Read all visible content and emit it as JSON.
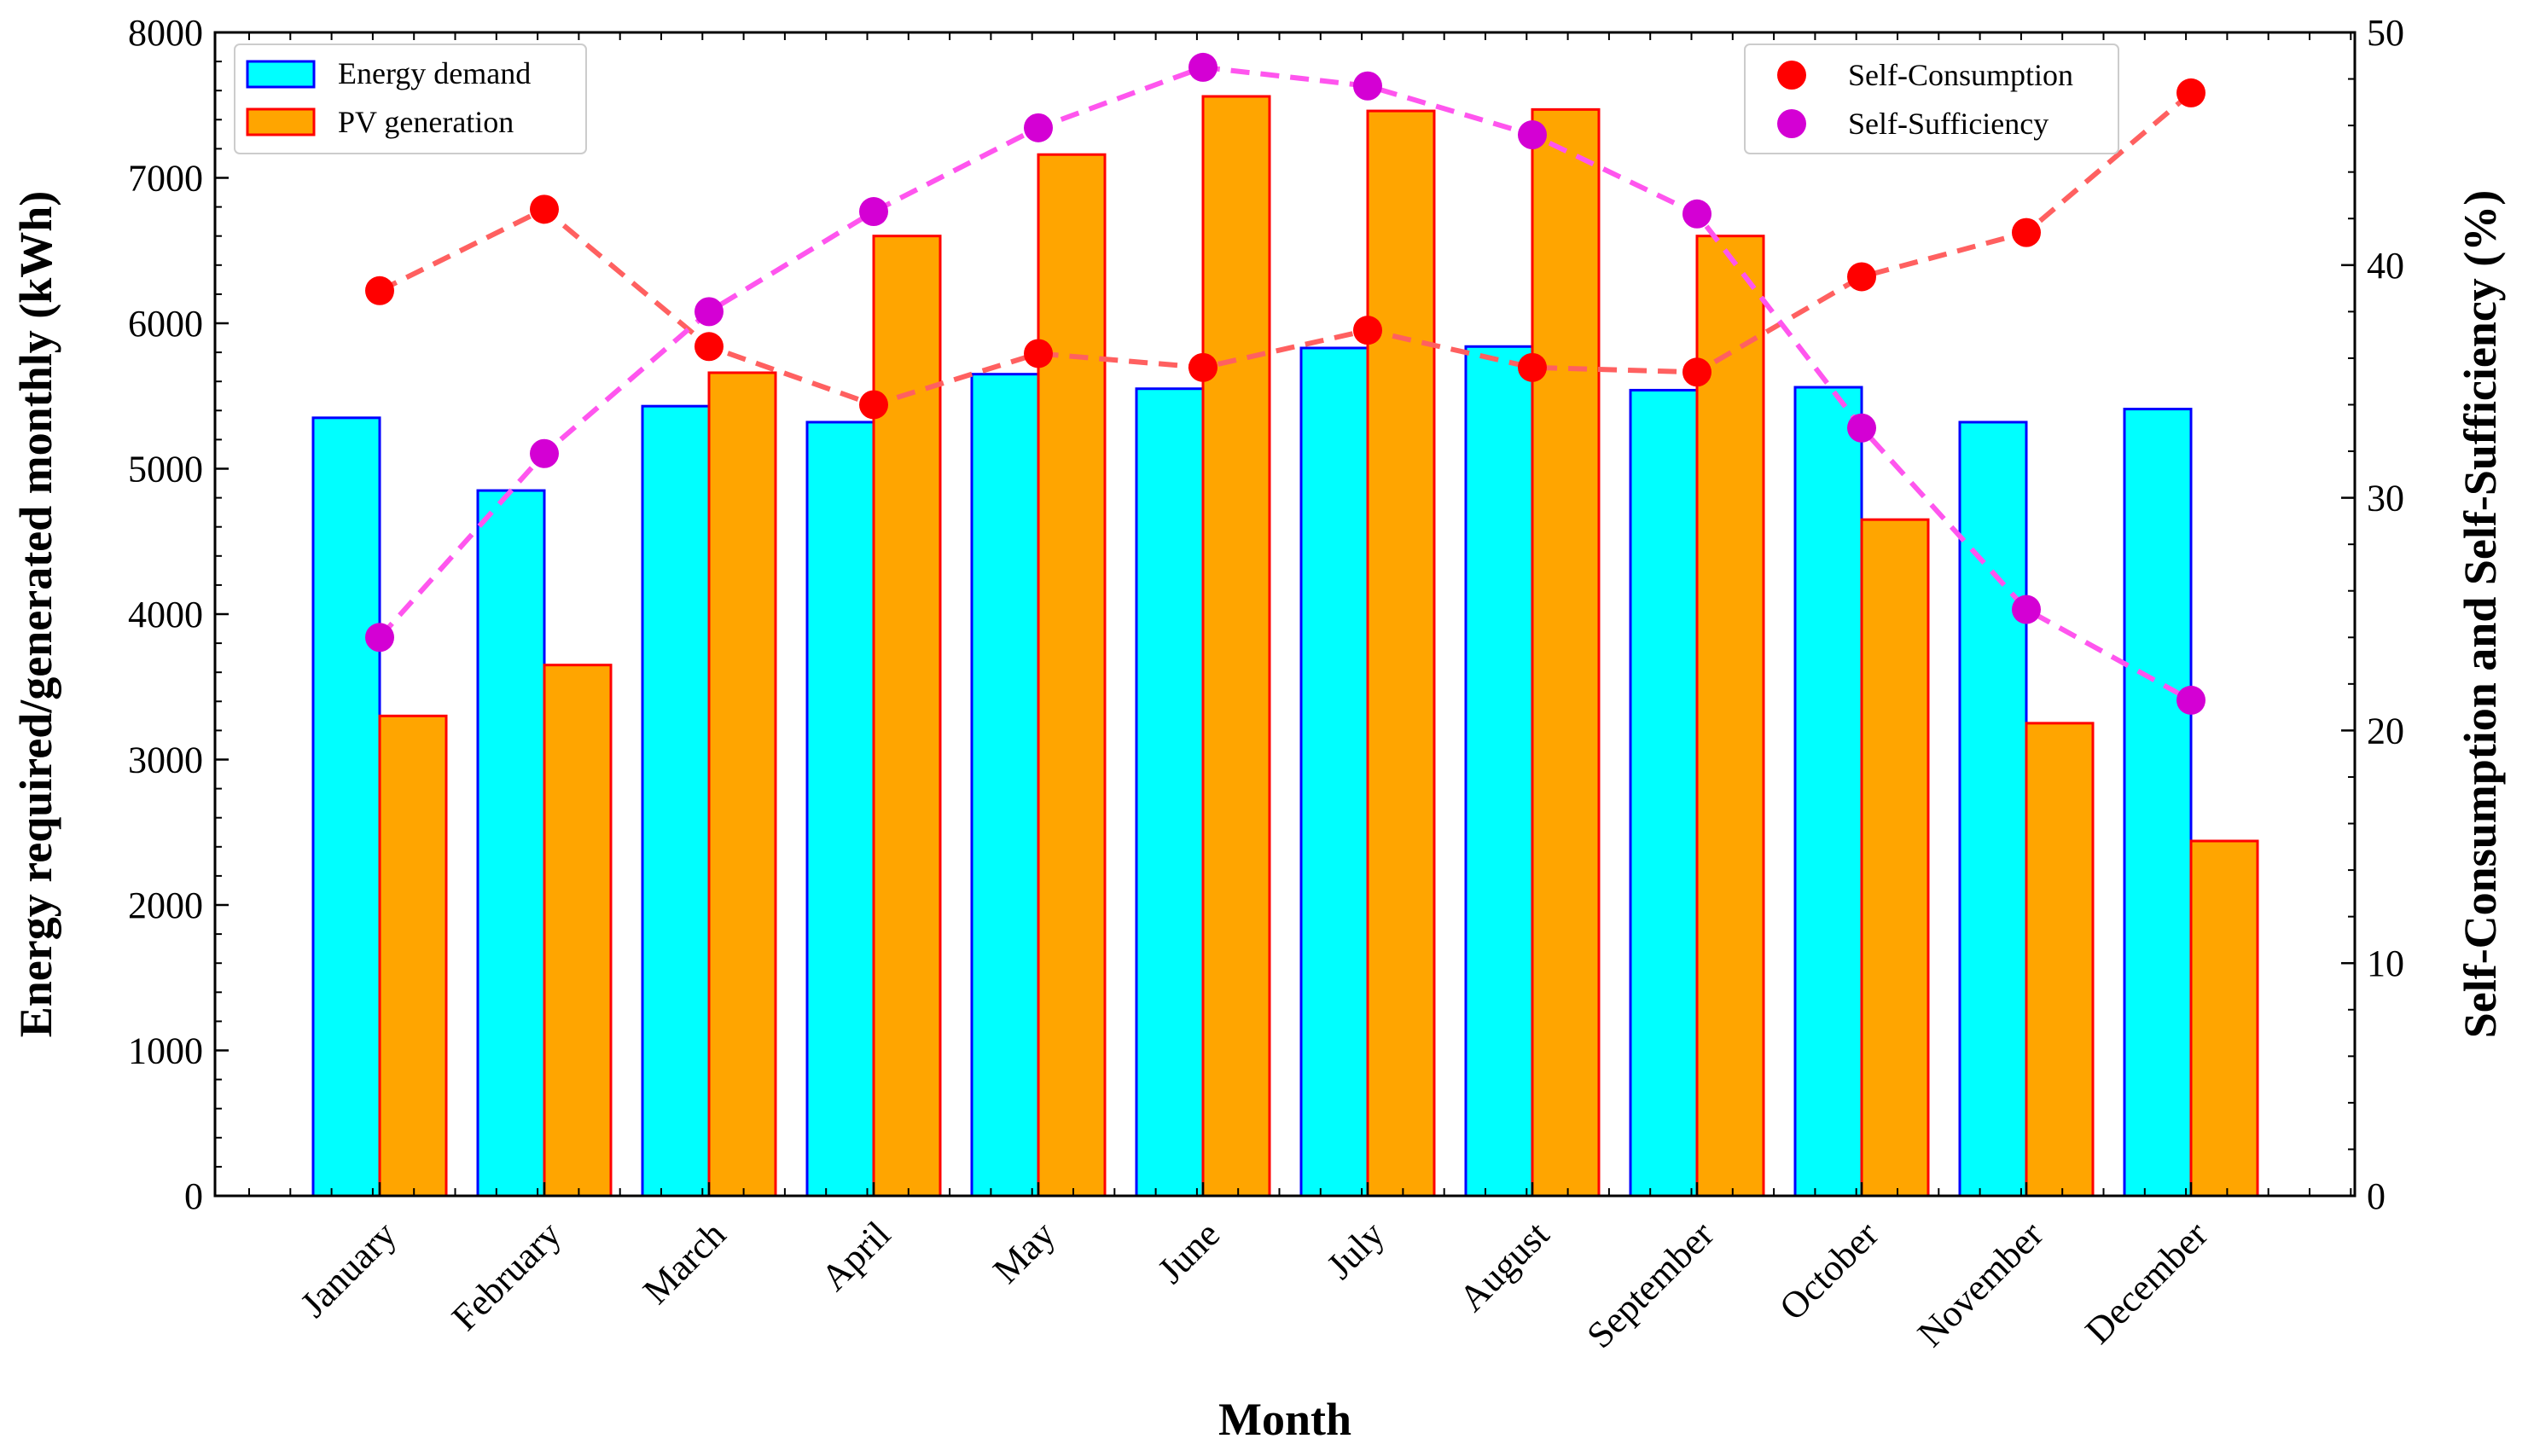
{
  "chart_data": {
    "type": "bar",
    "categories": [
      "January",
      "February",
      "March",
      "April",
      "May",
      "June",
      "July",
      "August",
      "September",
      "October",
      "November",
      "December"
    ],
    "series": [
      {
        "name": "Energy demand",
        "axis": "left",
        "kind": "bar",
        "values": [
          5350,
          4850,
          5430,
          5320,
          5650,
          5550,
          5830,
          5840,
          5540,
          5560,
          5320,
          5410
        ]
      },
      {
        "name": "PV generation",
        "axis": "left",
        "kind": "bar",
        "values": [
          3300,
          3650,
          5660,
          6600,
          7160,
          7560,
          7460,
          7470,
          6600,
          4650,
          3250,
          2440
        ]
      },
      {
        "name": "Self-Consumption",
        "axis": "right",
        "kind": "line",
        "values": [
          38.9,
          42.4,
          36.5,
          34.0,
          36.2,
          35.6,
          37.2,
          35.6,
          35.4,
          39.5,
          41.4,
          47.4
        ]
      },
      {
        "name": "Self-Sufficiency",
        "axis": "right",
        "kind": "line",
        "values": [
          24.0,
          31.9,
          38.0,
          42.3,
          45.9,
          48.5,
          47.7,
          45.6,
          42.2,
          33.0,
          25.2,
          21.3
        ]
      }
    ],
    "title": "",
    "xlabel": "Month",
    "ylabel": "Energy required/generated monthly (kWh)",
    "y2label": "Self-Consumption and Self-Sufficiency (%)",
    "ylim": [
      0,
      8000
    ],
    "y2lim": [
      0,
      50
    ],
    "yticks": [
      0,
      1000,
      2000,
      3000,
      4000,
      5000,
      6000,
      7000,
      8000
    ],
    "y2ticks": [
      0,
      10,
      20,
      30,
      40,
      50
    ],
    "grid": false,
    "legend_left": "top-left",
    "legend_right": "top-right",
    "colors": {
      "energy_demand_fill": "#00ffff",
      "energy_demand_edge": "#0000ff",
      "pv_fill": "#ffa500",
      "pv_edge": "#ff0000",
      "self_consumption_marker": "#ff0000",
      "self_consumption_line": "#ff6060",
      "self_sufficiency_marker": "#d400d4",
      "self_sufficiency_line": "#ff55ee"
    }
  }
}
